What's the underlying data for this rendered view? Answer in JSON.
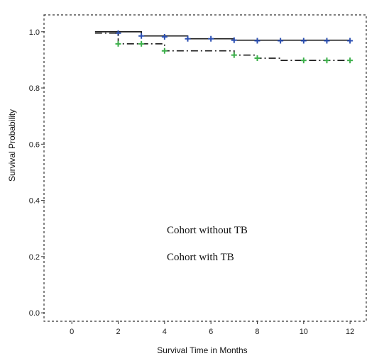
{
  "chart_data": {
    "type": "line",
    "subtype": "kaplan-meier step",
    "title": "",
    "xlabel": "Survival Time in Months",
    "ylabel": "Survival Probability",
    "xlim": [
      -1.2,
      12.7
    ],
    "ylim": [
      -0.03,
      1.06
    ],
    "x_ticks": [
      0,
      2,
      4,
      6,
      8,
      10,
      12
    ],
    "y_ticks": [
      0.0,
      0.2,
      0.4,
      0.6,
      0.8,
      1.0
    ],
    "x_tick_labels": [
      "0",
      "2",
      "4",
      "6",
      "8",
      "10",
      "12"
    ],
    "y_tick_labels": [
      "0.0",
      "0.2",
      "0.4",
      "0.6",
      "0.8",
      "1.0"
    ],
    "grid": false,
    "legend_position": "center",
    "legend_entries": [
      "Cohort without TB",
      "Cohort with TB"
    ],
    "series": [
      {
        "name": "Cohort without TB",
        "line_style": "solid",
        "line_color": "#1a1a1a",
        "censor_color": "#2b4fb3",
        "steps": [
          {
            "x": 1,
            "y": 1.0
          },
          {
            "x": 2,
            "y": 1.0
          },
          {
            "x": 3,
            "y": 0.985
          },
          {
            "x": 5,
            "y": 0.975
          },
          {
            "x": 7,
            "y": 0.97
          },
          {
            "x": 12,
            "y": 0.97
          }
        ],
        "censored": [
          {
            "x": 2,
            "y": 0.995
          },
          {
            "x": 3,
            "y": 0.985
          },
          {
            "x": 4,
            "y": 0.982
          },
          {
            "x": 5,
            "y": 0.975
          },
          {
            "x": 6,
            "y": 0.975
          },
          {
            "x": 7,
            "y": 0.97
          },
          {
            "x": 8,
            "y": 0.968
          },
          {
            "x": 9,
            "y": 0.968
          },
          {
            "x": 10,
            "y": 0.968
          },
          {
            "x": 11,
            "y": 0.968
          },
          {
            "x": 12,
            "y": 0.968
          }
        ]
      },
      {
        "name": "Cohort with TB",
        "line_style": "dash-dot",
        "line_color": "#1a1a1a",
        "censor_color": "#3cb04a",
        "steps": [
          {
            "x": 1,
            "y": 0.995
          },
          {
            "x": 2,
            "y": 0.995
          },
          {
            "x": 2,
            "y": 0.957
          },
          {
            "x": 4,
            "y": 0.957
          },
          {
            "x": 4,
            "y": 0.932
          },
          {
            "x": 7,
            "y": 0.932
          },
          {
            "x": 7,
            "y": 0.917
          },
          {
            "x": 8,
            "y": 0.917
          },
          {
            "x": 8,
            "y": 0.906
          },
          {
            "x": 9,
            "y": 0.906
          },
          {
            "x": 9,
            "y": 0.898
          },
          {
            "x": 12,
            "y": 0.898
          }
        ],
        "censored": [
          {
            "x": 2,
            "y": 0.957
          },
          {
            "x": 3,
            "y": 0.957
          },
          {
            "x": 4,
            "y": 0.932
          },
          {
            "x": 7,
            "y": 0.917
          },
          {
            "x": 8,
            "y": 0.906
          },
          {
            "x": 10,
            "y": 0.898
          },
          {
            "x": 11,
            "y": 0.898
          },
          {
            "x": 12,
            "y": 0.898
          }
        ]
      }
    ]
  }
}
